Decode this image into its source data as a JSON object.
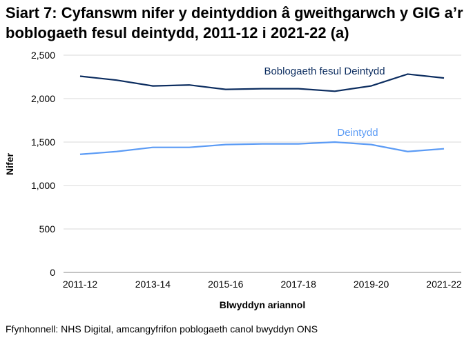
{
  "chart_data": {
    "type": "line",
    "title": "Siart 7: Cyfanswm nifer y deintyddion â gweithgarwch y GIG a’r boblogaeth fesul deintydd, 2011-12 i 2021-22 (a)",
    "xlabel": "Blwyddyn ariannol",
    "ylabel": "Nifer",
    "x": [
      "2011-12",
      "2012-13",
      "2013-14",
      "2014-15",
      "2015-16",
      "2016-17",
      "2017-18",
      "2018-19",
      "2019-20",
      "2020-21",
      "2021-22"
    ],
    "xtick_labels": [
      "2011-12",
      "2013-14",
      "2015-16",
      "2017-18",
      "2019-20",
      "2021-22"
    ],
    "ylim": [
      0,
      2500
    ],
    "yticks": [
      0,
      500,
      1000,
      1500,
      2000,
      2500
    ],
    "ytick_labels": [
      "0",
      "500",
      "1,000",
      "1,500",
      "2,000",
      "2,500"
    ],
    "grid": true,
    "legend": "inline labels",
    "series": [
      {
        "name": "Boblogaeth fesul Deintydd",
        "color": "#0b2c5f",
        "values": [
          2258,
          2213,
          2146,
          2157,
          2106,
          2114,
          2114,
          2085,
          2146,
          2282,
          2237
        ]
      },
      {
        "name": "Deintydd",
        "color": "#5b9bf5",
        "values": [
          1359,
          1391,
          1439,
          1439,
          1471,
          1479,
          1479,
          1500,
          1471,
          1391,
          1423
        ]
      }
    ]
  },
  "source": "Ffynhonnell: NHS Digital, amcangyfrifon poblogaeth canol bwyddyn ONS"
}
